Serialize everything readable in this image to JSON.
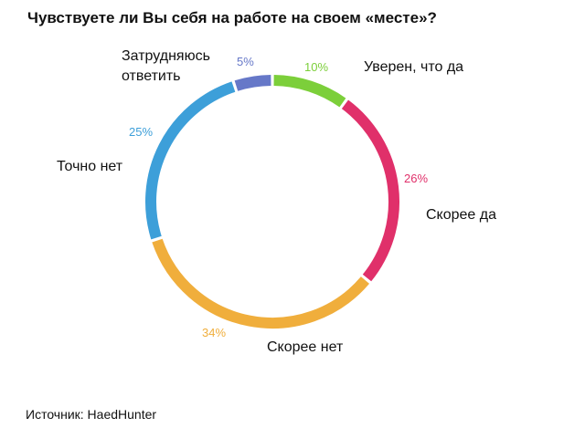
{
  "chart_data": {
    "type": "donut",
    "title": "Чувствуете ли Вы себя на работе на своем «месте»?",
    "categories": [
      "Уверен, что да",
      "Скорее да",
      "Скорее нет",
      "Точно нет",
      "Затрудняюсь ответить"
    ],
    "values": [
      10,
      26,
      34,
      25,
      5
    ],
    "value_labels": [
      "10%",
      "26%",
      "34%",
      "25%",
      "5%"
    ],
    "colors": [
      "#7ccf3a",
      "#e0306a",
      "#f0ae3c",
      "#3d9fd9",
      "#6678c8"
    ],
    "source": "Источник: HaedHunter"
  }
}
